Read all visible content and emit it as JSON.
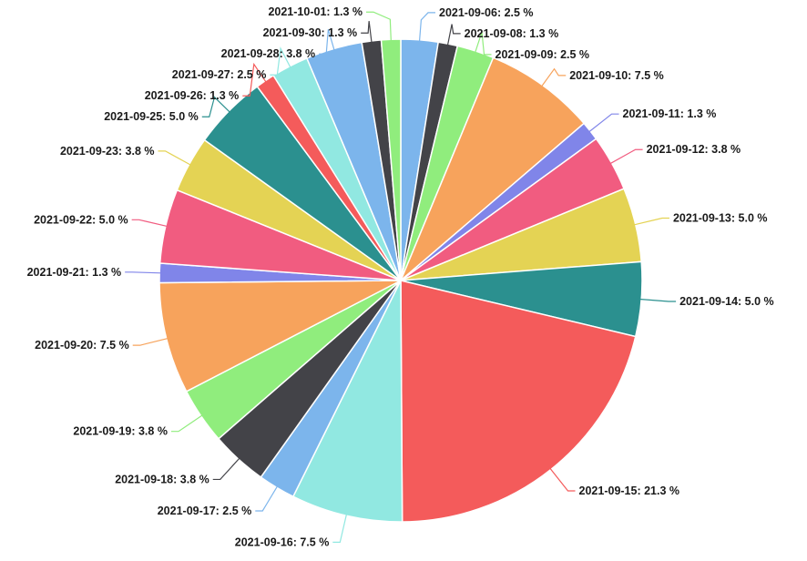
{
  "chart_data": {
    "type": "pie",
    "title": "",
    "unit": "%",
    "slices": [
      {
        "label": "2021-09-06",
        "value": 2.5,
        "color": "#7cb5ec"
      },
      {
        "label": "2021-09-08",
        "value": 1.3,
        "color": "#434348"
      },
      {
        "label": "2021-09-09",
        "value": 2.5,
        "color": "#90ed7d"
      },
      {
        "label": "2021-09-10",
        "value": 7.5,
        "color": "#f7a35c"
      },
      {
        "label": "2021-09-11",
        "value": 1.3,
        "color": "#8085e9"
      },
      {
        "label": "2021-09-12",
        "value": 3.8,
        "color": "#f15c80"
      },
      {
        "label": "2021-09-13",
        "value": 5.0,
        "color": "#e4d354"
      },
      {
        "label": "2021-09-14",
        "value": 5.0,
        "color": "#2b908f"
      },
      {
        "label": "2021-09-15",
        "value": 21.3,
        "color": "#f45b5b"
      },
      {
        "label": "2021-09-16",
        "value": 7.5,
        "color": "#91e8e1"
      },
      {
        "label": "2021-09-17",
        "value": 2.5,
        "color": "#7cb5ec"
      },
      {
        "label": "2021-09-18",
        "value": 3.8,
        "color": "#434348"
      },
      {
        "label": "2021-09-19",
        "value": 3.8,
        "color": "#90ed7d"
      },
      {
        "label": "2021-09-20",
        "value": 7.5,
        "color": "#f7a35c"
      },
      {
        "label": "2021-09-21",
        "value": 1.3,
        "color": "#8085e9"
      },
      {
        "label": "2021-09-22",
        "value": 5.0,
        "color": "#f15c80"
      },
      {
        "label": "2021-09-23",
        "value": 3.8,
        "color": "#e4d354"
      },
      {
        "label": "2021-09-25",
        "value": 5.0,
        "color": "#2b908f"
      },
      {
        "label": "2021-09-26",
        "value": 1.3,
        "color": "#f45b5b"
      },
      {
        "label": "2021-09-27",
        "value": 2.5,
        "color": "#91e8e1"
      },
      {
        "label": "2021-09-28",
        "value": 3.8,
        "color": "#7cb5ec"
      },
      {
        "label": "2021-09-30",
        "value": 1.3,
        "color": "#434348"
      },
      {
        "label": "2021-10-01",
        "value": 1.3,
        "color": "#90ed7d"
      }
    ]
  }
}
